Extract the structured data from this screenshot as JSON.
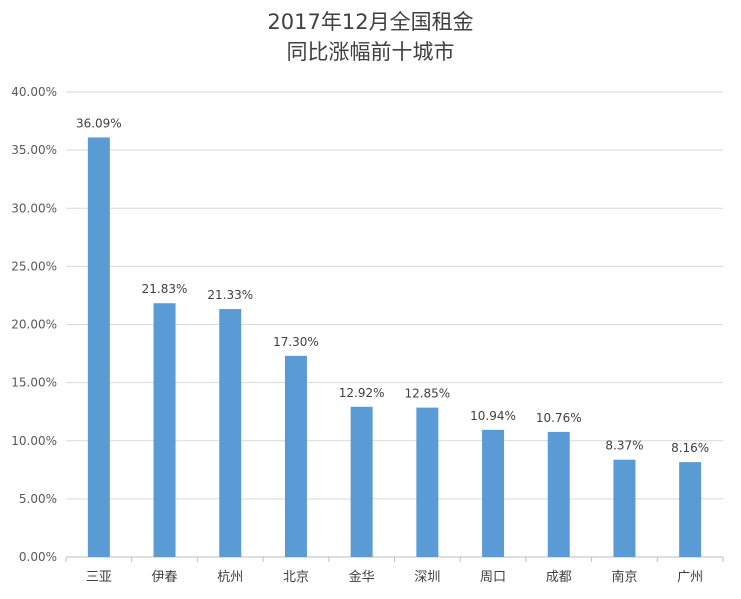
{
  "chart_data": {
    "type": "bar",
    "title_line1": "2017年12月全国租金",
    "title_line2": "同比涨幅前十城市",
    "categories": [
      "三亚",
      "伊春",
      "杭州",
      "北京",
      "金华",
      "深圳",
      "周口",
      "成都",
      "南京",
      "广州"
    ],
    "values": [
      36.09,
      21.83,
      21.33,
      17.3,
      12.92,
      12.85,
      10.94,
      10.76,
      8.37,
      8.16
    ],
    "data_labels": [
      "36.09%",
      "21.83%",
      "21.33%",
      "17.30%",
      "12.92%",
      "12.85%",
      "10.94%",
      "10.76%",
      "8.37%",
      "8.16%"
    ],
    "y_ticks": [
      "0.00%",
      "5.00%",
      "10.00%",
      "15.00%",
      "20.00%",
      "25.00%",
      "30.00%",
      "35.00%",
      "40.00%"
    ],
    "ylim": [
      0,
      40
    ],
    "grid": true,
    "legend": "none",
    "bar_color": "#5B9BD5"
  }
}
